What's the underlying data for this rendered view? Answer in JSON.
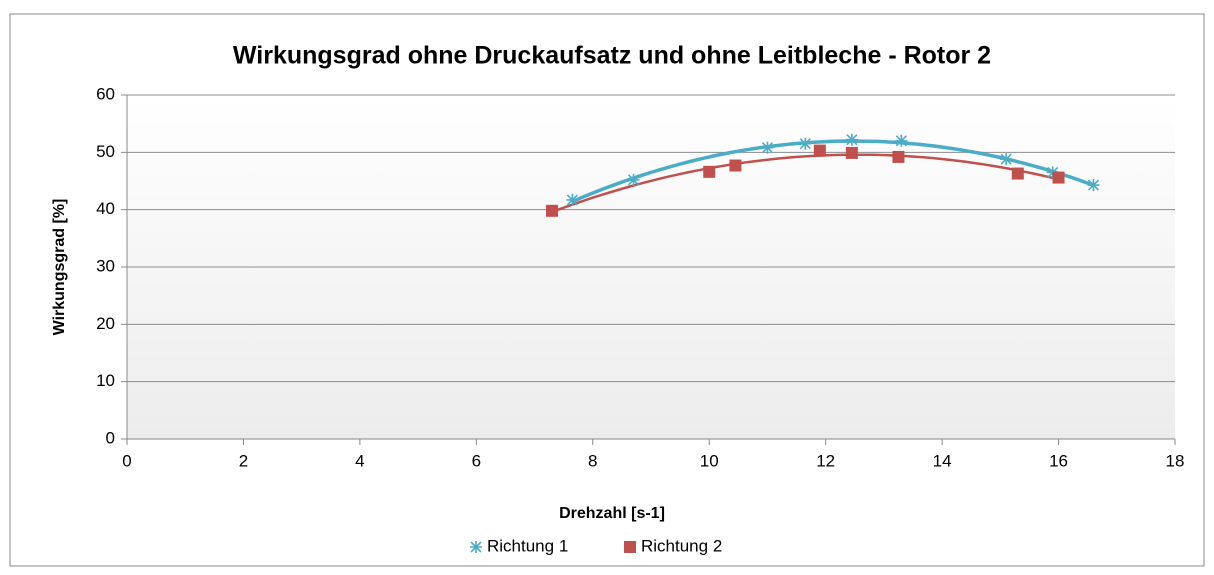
{
  "chart_data": {
    "type": "scatter",
    "title": "Wirkungsgrad ohne Druckaufsatz und ohne Leitbleche - Rotor 2",
    "xlabel": "Drehzahl [s-1]",
    "ylabel": "Wirkungsgrad [%]",
    "xlim": [
      0,
      18
    ],
    "xticks": [
      0,
      2,
      4,
      6,
      8,
      10,
      12,
      14,
      16,
      18
    ],
    "ylim": [
      0,
      60
    ],
    "yticks": [
      0,
      10,
      20,
      30,
      40,
      50,
      60
    ],
    "grid": true,
    "legend": "bottom",
    "trendline": "polynomial",
    "series": [
      {
        "name": "Richtung 1",
        "color": "#4bacc6",
        "marker": "star",
        "x": [
          7.65,
          8.7,
          11.0,
          11.65,
          12.45,
          13.3,
          15.1,
          15.9,
          16.6
        ],
        "values": [
          41.7,
          45.2,
          50.8,
          51.5,
          52.2,
          52.0,
          48.8,
          46.5,
          44.3
        ]
      },
      {
        "name": "Richtung 2",
        "color": "#c0504d",
        "marker": "square",
        "x": [
          7.3,
          10.0,
          10.45,
          11.9,
          12.45,
          13.25,
          15.3,
          16.0
        ],
        "values": [
          39.8,
          46.6,
          47.7,
          50.3,
          49.9,
          49.2,
          46.3,
          45.6
        ]
      }
    ]
  }
}
